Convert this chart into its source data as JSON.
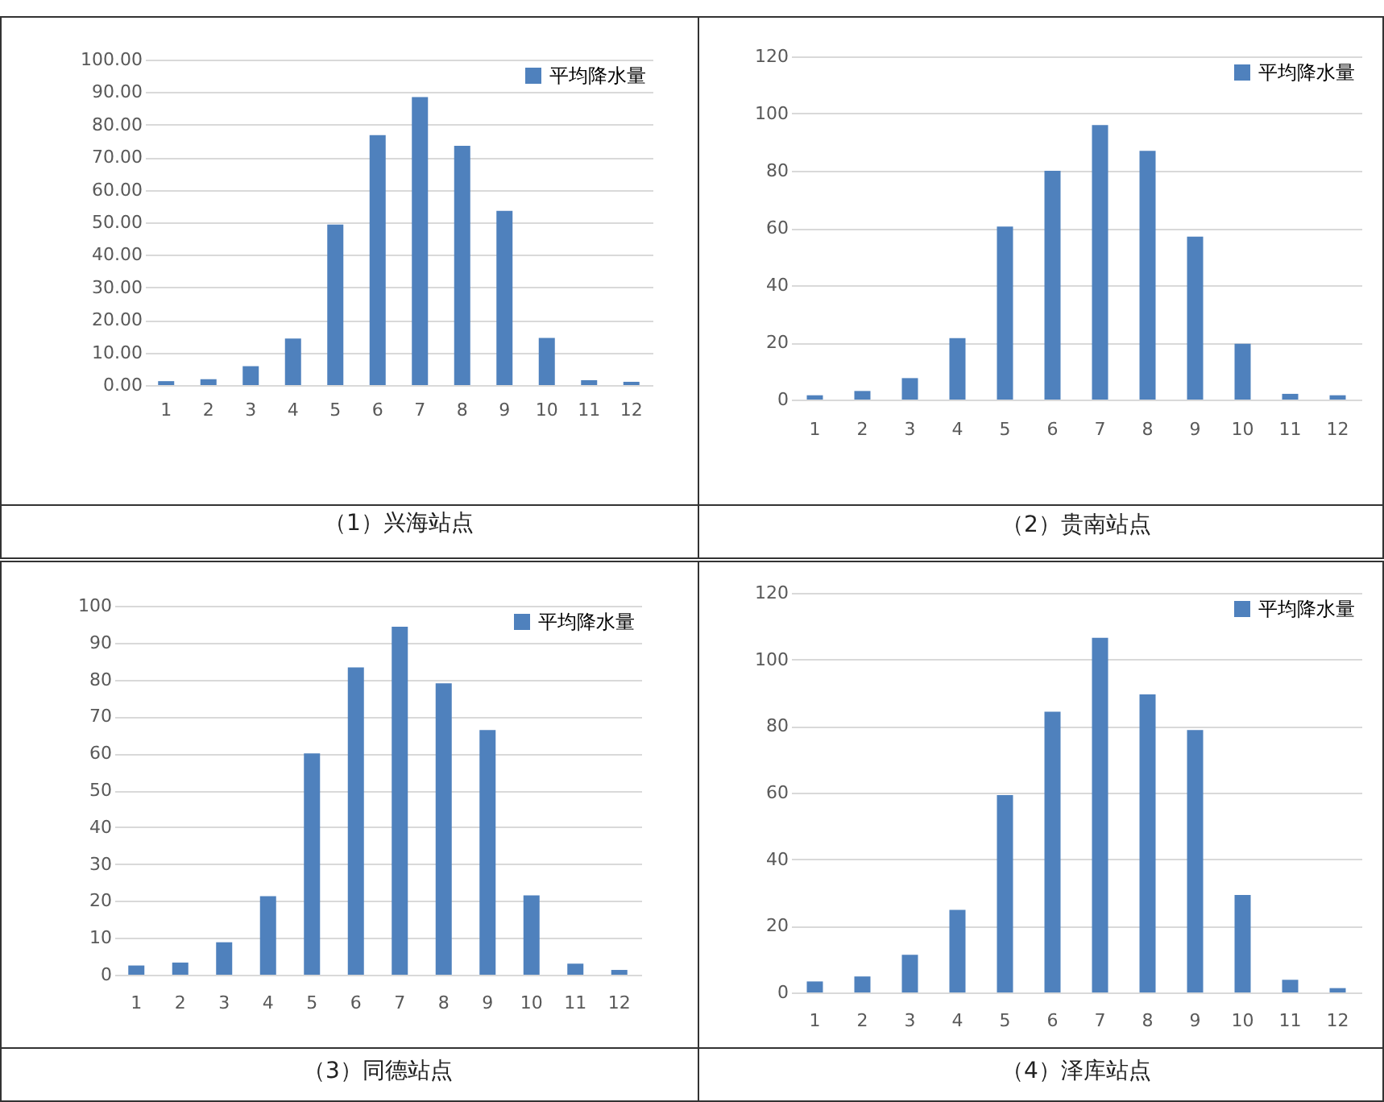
{
  "chart_data": [
    {
      "type": "bar",
      "title": "（1）兴海站点",
      "categories": [
        "1",
        "2",
        "3",
        "4",
        "5",
        "6",
        "7",
        "8",
        "9",
        "10",
        "11",
        "12"
      ],
      "series": [
        {
          "name": "平均降水量",
          "color": "#4f81bd",
          "values": [
            1.2,
            1.8,
            5.8,
            14.3,
            49.3,
            76.8,
            88.5,
            73.5,
            53.5,
            14.5,
            1.5,
            1.0
          ]
        }
      ],
      "ylim": [
        0,
        100
      ],
      "yticks": [
        {
          "value": 0,
          "label": "0.00"
        },
        {
          "value": 10,
          "label": "10.00"
        },
        {
          "value": 20,
          "label": "20.00"
        },
        {
          "value": 30,
          "label": "30.00"
        },
        {
          "value": 40,
          "label": "40.00"
        },
        {
          "value": 50,
          "label": "50.00"
        },
        {
          "value": 60,
          "label": "60.00"
        },
        {
          "value": 70,
          "label": "70.00"
        },
        {
          "value": 80,
          "label": "80.00"
        },
        {
          "value": 90,
          "label": "90.00"
        },
        {
          "value": 100,
          "label": "100.00"
        }
      ],
      "grid": "y",
      "legend": "top right"
    },
    {
      "type": "bar",
      "title": "（2）贵南站点",
      "categories": [
        "1",
        "2",
        "3",
        "4",
        "5",
        "6",
        "7",
        "8",
        "9",
        "10",
        "11",
        "12"
      ],
      "series": [
        {
          "name": "平均降水量",
          "color": "#4f81bd",
          "values": [
            1.5,
            3,
            7.5,
            21.5,
            60.5,
            80,
            96,
            87,
            57,
            19.5,
            2,
            1.5
          ]
        }
      ],
      "ylim": [
        0,
        120
      ],
      "yticks": [
        0,
        20,
        40,
        60,
        80,
        100,
        120
      ],
      "grid": "y",
      "legend": "top right"
    },
    {
      "type": "bar",
      "title": "（3）同德站点",
      "categories": [
        "1",
        "2",
        "3",
        "4",
        "5",
        "6",
        "7",
        "8",
        "9",
        "10",
        "11",
        "12"
      ],
      "series": [
        {
          "name": "平均降水量",
          "color": "#4f81bd",
          "values": [
            2.5,
            3.3,
            8.8,
            21.3,
            60,
            83.3,
            94.3,
            79,
            66.3,
            21.5,
            3,
            1.3
          ]
        }
      ],
      "ylim": [
        0,
        100
      ],
      "yticks": [
        0,
        10,
        20,
        30,
        40,
        50,
        60,
        70,
        80,
        90,
        100
      ],
      "grid": "y",
      "legend": "top right"
    },
    {
      "type": "bar",
      "title": "（4）泽库站点",
      "categories": [
        "1",
        "2",
        "3",
        "4",
        "5",
        "6",
        "7",
        "8",
        "9",
        "10",
        "11",
        "12"
      ],
      "series": [
        {
          "name": "平均降水量",
          "color": "#4f81bd",
          "values": [
            3.3,
            4.8,
            11.3,
            24.8,
            59.3,
            84.3,
            106.5,
            89.5,
            78.8,
            29.3,
            3.8,
            1.3
          ]
        }
      ],
      "ylim": [
        0,
        120
      ],
      "yticks": [
        0,
        20,
        40,
        60,
        80,
        100,
        120
      ],
      "grid": "y",
      "legend": "top right"
    }
  ]
}
